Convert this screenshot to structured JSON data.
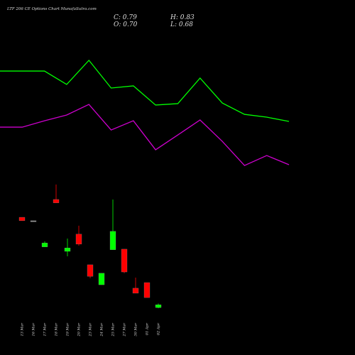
{
  "chart_data": [
    {
      "type": "candlestick",
      "title": "LTF 206 CE Options Chart MunafaSutra.com",
      "header": [
        "C: 0.79",
        "H: 0.83",
        "O: 0.70",
        "L: 0.68"
      ],
      "categories": [
        "13 Mar",
        "16 Mar",
        "17 Mar",
        "18 Mar",
        "19 Mar",
        "20 Mar",
        "23 Mar",
        "24 Mar",
        "25 Mar",
        "27 Mar",
        "30 Mar",
        "01 Apr",
        "02 Apr"
      ],
      "open": [
        3.59,
        3.48,
        2.64,
        4.16,
        2.5,
        3.05,
        2.07,
        1.43,
        2.55,
        2.57,
        1.32,
        1.5,
        0.7
      ],
      "high": [
        3.59,
        3.48,
        2.82,
        4.64,
        2.91,
        3.32,
        2.07,
        1.8,
        4.16,
        2.57,
        1.66,
        1.5,
        0.83
      ],
      "low": [
        3.48,
        3.48,
        2.64,
        4.05,
        2.34,
        2.68,
        1.64,
        1.43,
        2.55,
        1.8,
        1.16,
        1.02,
        0.68
      ],
      "close": [
        3.48,
        3.48,
        2.77,
        4.05,
        2.61,
        2.73,
        1.7,
        1.8,
        3.14,
        1.84,
        1.16,
        1.02,
        0.79
      ],
      "up_color": "#00ff00",
      "down_color": "#ff0000",
      "flat_color": "#999999",
      "ylim": [
        0.5,
        5.0
      ]
    },
    {
      "type": "line",
      "categories": [
        null,
        null,
        null,
        null,
        null,
        null,
        null,
        null,
        null,
        null,
        null,
        null,
        null,
        null
      ],
      "series": [
        {
          "color": "#00ff00",
          "values": [
            8.33,
            8.33,
            8.33,
            7.28,
            9.17,
            7.0,
            7.17,
            5.67,
            5.78,
            7.78,
            5.83,
            4.94,
            4.72,
            4.39
          ]
        },
        {
          "color": "#cc00cc",
          "values": [
            3.94,
            3.94,
            4.44,
            4.89,
            5.72,
            3.72,
            4.44,
            2.17,
            3.33,
            4.5,
            2.83,
            0.94,
            1.72,
            1.0
          ]
        }
      ],
      "ylim": [
        0,
        10
      ]
    }
  ]
}
